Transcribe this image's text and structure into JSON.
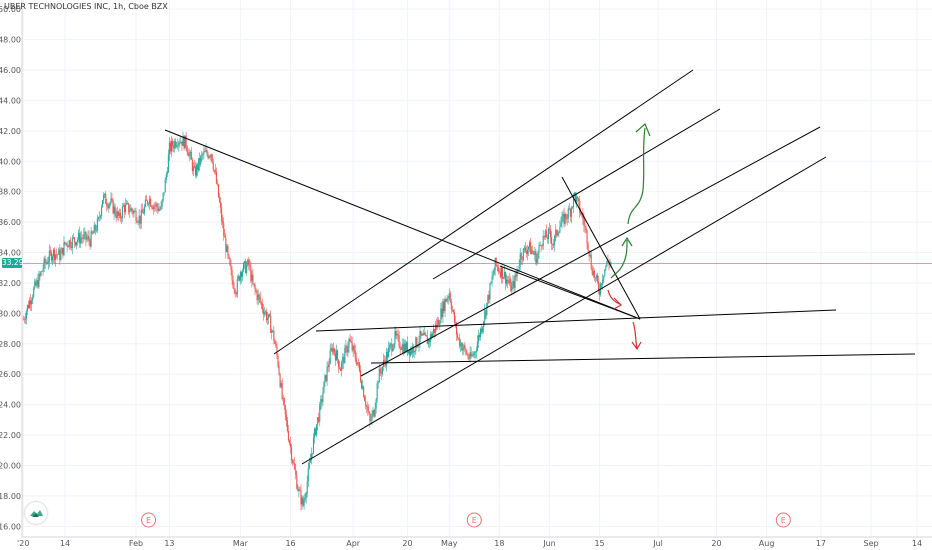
{
  "chart_data": {
    "type": "candlestick",
    "title": "UBER TECHNOLOGIES INC, 1h, Cboe BZX",
    "ylim": [
      15.3,
      50.6
    ],
    "yticks": [
      {
        "value": 16,
        "label": "16.00"
      },
      {
        "value": 18,
        "label": "18.00"
      },
      {
        "value": 20,
        "label": "20.00"
      },
      {
        "value": 22,
        "label": "22.00"
      },
      {
        "value": 24,
        "label": "24.00"
      },
      {
        "value": 26,
        "label": "26.00"
      },
      {
        "value": 28,
        "label": "28.00"
      },
      {
        "value": 30,
        "label": "30.00"
      },
      {
        "value": 32,
        "label": "32.00"
      },
      {
        "value": 34,
        "label": "34.00"
      },
      {
        "value": 36,
        "label": "36.00"
      },
      {
        "value": 38,
        "label": "38.00"
      },
      {
        "value": 40,
        "label": "40.00"
      },
      {
        "value": 42,
        "label": "42.00"
      },
      {
        "value": 44,
        "label": "44.00"
      },
      {
        "value": 46,
        "label": "46.00"
      },
      {
        "value": 48,
        "label": "48.00"
      },
      {
        "value": 50,
        "label": "50.00"
      }
    ],
    "xticks": [
      {
        "t": 0,
        "label": "'20"
      },
      {
        "t": 10,
        "label": "14"
      },
      {
        "t": 27,
        "label": "Feb"
      },
      {
        "t": 35,
        "label": "13"
      },
      {
        "t": 52,
        "label": "Mar"
      },
      {
        "t": 64,
        "label": "16"
      },
      {
        "t": 79,
        "label": "Apr"
      },
      {
        "t": 92,
        "label": "20"
      },
      {
        "t": 102,
        "label": "May"
      },
      {
        "t": 114,
        "label": "18"
      },
      {
        "t": 126,
        "label": "Jun"
      },
      {
        "t": 138,
        "label": "15"
      },
      {
        "t": 152,
        "label": "Jul"
      },
      {
        "t": 166,
        "label": "20"
      },
      {
        "t": 178,
        "label": "Aug"
      },
      {
        "t": 191,
        "label": "17"
      },
      {
        "t": 203,
        "label": "Sep"
      },
      {
        "t": 214,
        "label": "14"
      }
    ],
    "xlim": [
      -0.3,
      217.6
    ],
    "current_price": {
      "value": 33.29,
      "label": "33.29"
    },
    "earnings_markers": [
      {
        "t": 30,
        "label": "E"
      },
      {
        "t": 108,
        "label": "E"
      },
      {
        "t": 182,
        "label": "E"
      }
    ],
    "path": [
      [
        0,
        29.6
      ],
      [
        2,
        31.2
      ],
      [
        4,
        32.4
      ],
      [
        5,
        33.2
      ],
      [
        7,
        34.0
      ],
      [
        9,
        33.8
      ],
      [
        10,
        34.6
      ],
      [
        12,
        34.8
      ],
      [
        14,
        35.0
      ],
      [
        16,
        34.8
      ],
      [
        18,
        36.0
      ],
      [
        19,
        37.6
      ],
      [
        21,
        37.2
      ],
      [
        23,
        36.2
      ],
      [
        24,
        37.0
      ],
      [
        26,
        36.8
      ],
      [
        28,
        36.2
      ],
      [
        30,
        37.6
      ],
      [
        31,
        37.2
      ],
      [
        33,
        36.8
      ],
      [
        34,
        38.6
      ],
      [
        35,
        40.8
      ],
      [
        37,
        41.5
      ],
      [
        39,
        41.2
      ],
      [
        41,
        39.2
      ],
      [
        43,
        40.4
      ],
      [
        45,
        40.6
      ],
      [
        46,
        39.0
      ],
      [
        47,
        37.2
      ],
      [
        48,
        35.2
      ],
      [
        49,
        33.6
      ],
      [
        50,
        32.2
      ],
      [
        51,
        31.6
      ],
      [
        52,
        32.8
      ],
      [
        54,
        33.2
      ],
      [
        55,
        31.8
      ],
      [
        56,
        31.2
      ],
      [
        57,
        30.6
      ],
      [
        59,
        29.4
      ],
      [
        60,
        28.4
      ],
      [
        61,
        26.8
      ],
      [
        62,
        24.4
      ],
      [
        63,
        22.8
      ],
      [
        64,
        21.2
      ],
      [
        65,
        19.6
      ],
      [
        66,
        18.2
      ],
      [
        67,
        17.4
      ],
      [
        68,
        19.0
      ],
      [
        69,
        20.8
      ],
      [
        70,
        22.4
      ],
      [
        71,
        23.6
      ],
      [
        72,
        25.2
      ],
      [
        73,
        26.6
      ],
      [
        74,
        27.8
      ],
      [
        75,
        27.2
      ],
      [
        76,
        26.4
      ],
      [
        78,
        28.2
      ],
      [
        80,
        26.8
      ],
      [
        82,
        24.2
      ],
      [
        83,
        22.8
      ],
      [
        84,
        23.6
      ],
      [
        85,
        25.8
      ],
      [
        87,
        27.2
      ],
      [
        89,
        28.4
      ],
      [
        91,
        27.8
      ],
      [
        93,
        27.6
      ],
      [
        95,
        28.4
      ],
      [
        97,
        28.2
      ],
      [
        99,
        29.2
      ],
      [
        101,
        30.8
      ],
      [
        102,
        31.4
      ],
      [
        103,
        29.8
      ],
      [
        104,
        28.4
      ],
      [
        106,
        27.4
      ],
      [
        107,
        27.0
      ],
      [
        108,
        27.4
      ],
      [
        110,
        29.4
      ],
      [
        111,
        30.6
      ],
      [
        113,
        33.2
      ],
      [
        115,
        32.6
      ],
      [
        117,
        31.6
      ],
      [
        118,
        32.4
      ],
      [
        119,
        33.8
      ],
      [
        121,
        34.4
      ],
      [
        123,
        33.6
      ],
      [
        124,
        34.8
      ],
      [
        126,
        35.2
      ],
      [
        127,
        34.6
      ],
      [
        128,
        35.6
      ],
      [
        130,
        36.4
      ],
      [
        131,
        36.8
      ],
      [
        132,
        37.8
      ],
      [
        133,
        37.0
      ],
      [
        134,
        36.2
      ],
      [
        135,
        35.0
      ],
      [
        136,
        33.2
      ],
      [
        137,
        32.2
      ],
      [
        138,
        31.6
      ],
      [
        139,
        32.8
      ],
      [
        140,
        33.4
      ],
      [
        141,
        33.3
      ]
    ],
    "line_color": "#000000"
  },
  "colors": {
    "bull": "#26a69a",
    "bear": "#ef5350",
    "price_line": "#26a69a",
    "badge_bg": "#26a69a",
    "earnings": "#e57373",
    "green_arrow": "#2e7d32",
    "red_arrow": "#d32f2f",
    "logo": "#37a88d"
  },
  "icons": {
    "logo": "tradingview-logo-icon",
    "earnings": "earnings-marker-icon"
  }
}
